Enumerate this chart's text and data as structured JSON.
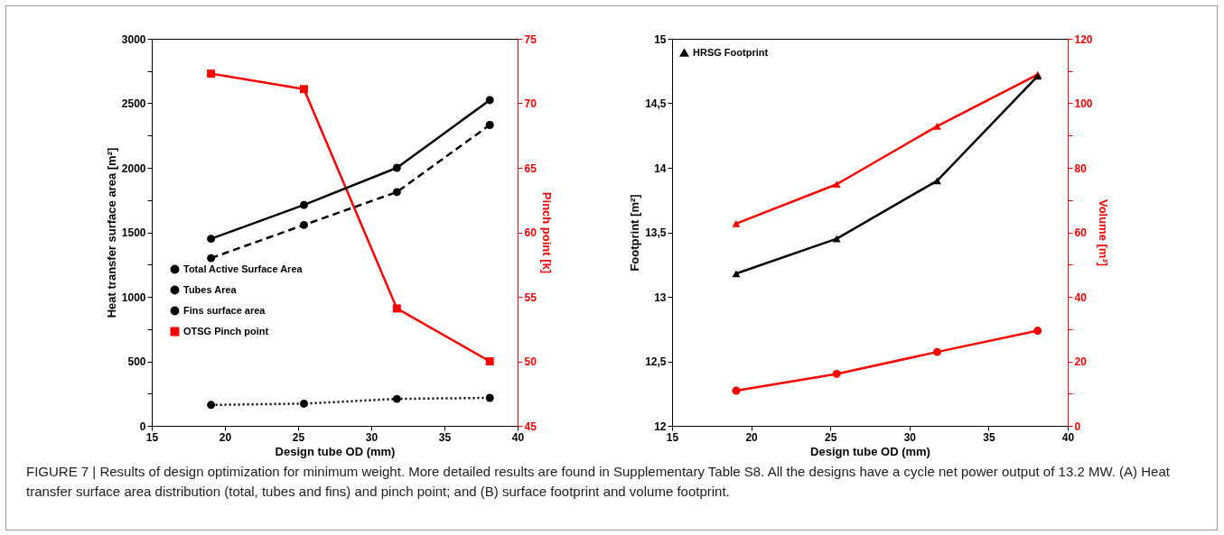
{
  "chart_data": [
    {
      "type": "line",
      "x": [
        19.05,
        25.4,
        31.75,
        38.1
      ],
      "xlabel": "Design tube OD (mm)",
      "ylabel": "Heat transfer surface area [m²]",
      "y2label": "Pinch point [k]",
      "xlim": [
        15,
        40
      ],
      "xticks": [
        15,
        20,
        25,
        30,
        35,
        40
      ],
      "ylim": [
        0,
        3000
      ],
      "yticks": [
        0,
        {
          "value": 250,
          "label": null
        },
        500,
        {
          "value": 750,
          "label": null
        },
        1000,
        {
          "value": 1250,
          "label": null
        },
        1500,
        {
          "value": 1750,
          "label": null
        },
        2000,
        {
          "value": 2250,
          "label": null
        },
        2500,
        {
          "value": 2750,
          "label": null
        },
        3000
      ],
      "y2lim": [
        45,
        75
      ],
      "y2ticks": [
        45,
        50,
        55,
        60,
        65,
        70,
        75
      ],
      "legend": "left",
      "grid": false,
      "series": [
        {
          "name": "Total Active Surface Area",
          "color": "#000000",
          "values": [
            1450,
            1712,
            2000,
            2525
          ],
          "marker": "circle",
          "line_style": "solid"
        },
        {
          "name": "Tubes Area",
          "color": "#000000",
          "values": [
            162,
            172,
            209,
            217
          ],
          "marker": "circle",
          "line_style": "dotted"
        },
        {
          "name": "Fins surface area",
          "color": "#000000",
          "values": [
            1300,
            1557,
            1812,
            2332
          ],
          "marker": "circle",
          "line_style": "dashed"
        },
        {
          "name": "OTSG Pinch point",
          "color": "#ff0000",
          "values": [
            72.3,
            71.1,
            54.1,
            50
          ],
          "marker": "square",
          "line_style": "solid",
          "axis": "y2"
        }
      ],
      "annotations": [
        "FIGURE 7 | Results of design optimization for minimum weight. More detailed results are found in Supplementary Table S8. All the designs have a cycle net power output of 13.2 MW. (A) Heat transfer surface area distribution (total, tubes and fins) and pinch point; and (B) surface footprint and volume footprint."
      ]
    },
    {
      "type": "line",
      "x": [
        19.05,
        25.4,
        31.75,
        38.1
      ],
      "xlabel": "Design tube OD (mm)",
      "ylabel": "Footprint [m²]",
      "y2label": "Volume [m³]",
      "xlim": [
        15,
        40
      ],
      "xticks": [
        15,
        20,
        25,
        30,
        35,
        40
      ],
      "ylim": [
        12,
        15
      ],
      "yticks": [
        12,
        {
          "value": 12.5,
          "label": "12,5"
        },
        13,
        {
          "value": 13.5,
          "label": "13,5"
        },
        14,
        {
          "value": 14.5,
          "label": "14,5"
        },
        15
      ],
      "y2lim": [
        0,
        120
      ],
      "y2ticks": [
        0,
        {
          "value": 10,
          "label": null
        },
        20,
        {
          "value": 30,
          "label": null
        },
        40,
        {
          "value": 50,
          "label": null
        },
        60,
        {
          "value": 70,
          "label": null
        },
        80,
        {
          "value": 90,
          "label": null
        },
        100,
        {
          "value": 110,
          "label": null
        },
        120
      ],
      "legend": "top left",
      "grid": false,
      "series": [
        {
          "name": "HRSG Footprint",
          "color": "#000000",
          "values": [
            13.18,
            13.45,
            13.9,
            14.71
          ],
          "marker": "triangle",
          "line_style": "solid"
        },
        {
          "color": "#ff0000",
          "values": [
            62.7,
            74.9,
            92.9,
            108.9
          ],
          "marker": "triangle",
          "line_style": "solid",
          "axis": "y2"
        },
        {
          "color": "#ff0000",
          "values": [
            10.9,
            16.1,
            22.9,
            29.5
          ],
          "marker": "circle",
          "line_style": "solid",
          "axis": "y2"
        }
      ]
    }
  ]
}
